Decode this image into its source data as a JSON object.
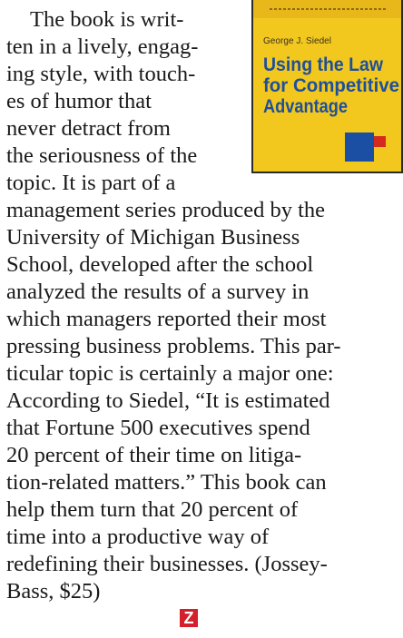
{
  "article": {
    "lines": [
      "The book is writ-",
      "ten in a lively, engag-",
      "ing style, with touch-",
      "es of humor that",
      "never detract from",
      "the seriousness of the",
      "topic. It is part of a",
      "management series produced by the",
      "University of Michigan Business",
      "School, developed after the school",
      "analyzed the results of a survey in",
      "which managers reported their most",
      "pressing business problems. This par-",
      "ticular topic is certainly a major one:",
      "According to Siedel, “It is estimated",
      "that Fortune 500 executives spend",
      "20 percent of their time on litiga-",
      "tion-related matters.” This book can",
      "help them turn that 20 percent of",
      "time into a productive way of",
      "redefining their businesses. (Jossey-",
      "Bass, $25)"
    ],
    "end_mark": "Z"
  },
  "cover": {
    "author": "George J. Siedel",
    "title_lines": [
      "Using the Law",
      "for Competitive",
      "Advantage"
    ]
  }
}
